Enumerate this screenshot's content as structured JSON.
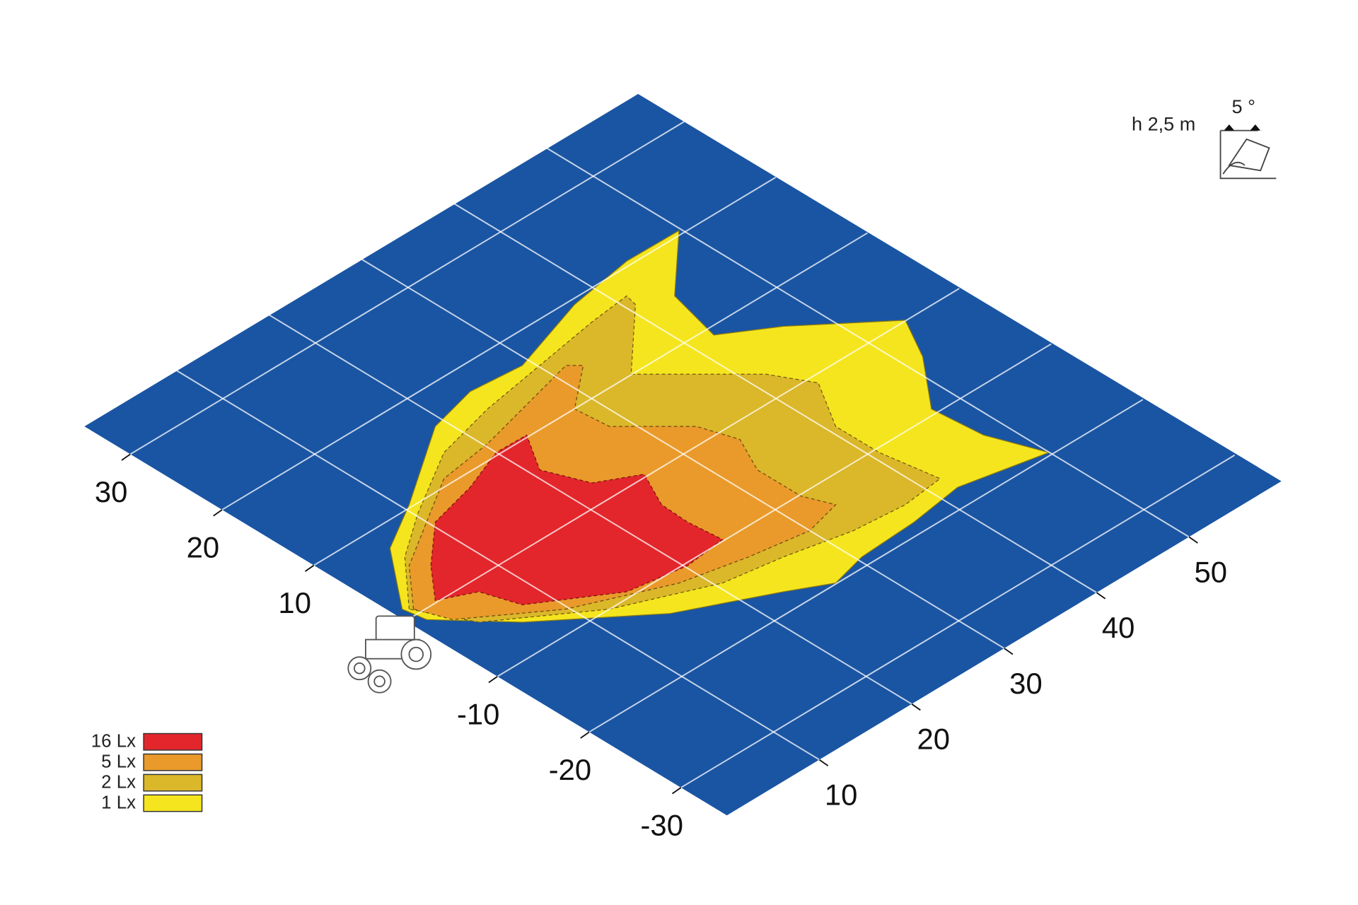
{
  "axes": {
    "left_labels": [
      "30",
      "20",
      "10",
      "-10",
      "-20",
      "-30"
    ],
    "right_labels": [
      "10",
      "20",
      "30",
      "40",
      "50"
    ]
  },
  "legend": [
    {
      "label": "16 Lx",
      "color": "#e3262b"
    },
    {
      "label": "5 Lx",
      "color": "#ea9a2a"
    },
    {
      "label": "2 Lx",
      "color": "#dbb72a"
    },
    {
      "label": "1 Lx",
      "color": "#f5e51e"
    }
  ],
  "mount": {
    "height": "h 2,5 m",
    "angle": "5 °"
  }
}
